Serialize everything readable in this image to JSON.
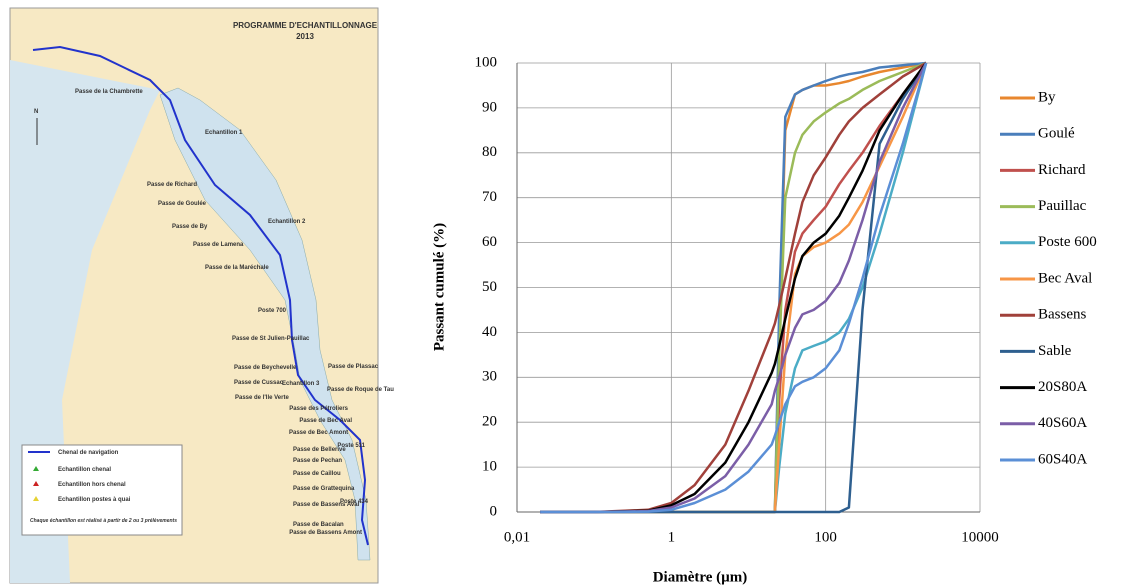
{
  "map": {
    "title": "PROGRAMME D'ECHANTILLONNAGE",
    "year": "2013",
    "north": "N",
    "labels": [
      "Passe de la Chambrette",
      "Echantillon 1",
      "Passe de Richard",
      "Passe de Goulée",
      "Passe de By",
      "Echantillon 2",
      "Passe de Lamena",
      "Passe de la Maréchale",
      "Poste 700",
      "Passe de St Julien-Pauillac",
      "Passe de Beychevelle",
      "Passe de Cussac",
      "Echantillon 3",
      "Passe de l'Ile Verte",
      "Passe de Plassac",
      "Passe de Roque de Tau",
      "Passe des Pétroliers",
      "Passe de Bec Aval",
      "Passe de Bec Amont",
      "Poste 511",
      "Passe de Bellerive",
      "Passe de Pechan",
      "Passe de Caillou",
      "Passe de Grattequina",
      "Passe de Bassens Aval",
      "Poste 434",
      "Passe de Bacalan",
      "Passe de Bassens Amont"
    ],
    "legend": [
      "Chenal de navigation",
      "Echantillon chenal",
      "Echantillon hors chenal",
      "Echantillon postes à quai"
    ],
    "note": "Chaque échantillon est réalisé à partir de 2 ou 3 prélèvements"
  },
  "chart_data": {
    "type": "line",
    "x_label": "Diamètre (µm)",
    "y_label": "Passant cumulé (%)",
    "log_scale": "x",
    "grid": true,
    "legend": "right",
    "xlim": [
      0.01,
      10000
    ],
    "xticks": [
      {
        "value": 0.01,
        "label": "0,01"
      },
      1,
      100,
      10000
    ],
    "ylim": [
      0,
      100
    ],
    "yticks": [
      0,
      10,
      20,
      30,
      40,
      50,
      60,
      70,
      80,
      90,
      100
    ],
    "x": [
      0.02,
      0.1,
      0.5,
      1,
      2,
      5,
      10,
      20,
      22,
      25,
      30,
      40,
      50,
      70,
      100,
      150,
      200,
      300,
      500,
      1000,
      2000
    ],
    "series": [
      {
        "name": "By",
        "color": "#e8872e",
        "values": [
          0,
          0,
          0,
          0,
          0,
          0,
          0,
          0,
          0,
          40,
          85,
          93,
          94,
          95,
          95,
          95.5,
          96,
          97,
          98,
          99,
          100
        ]
      },
      {
        "name": "Goulé",
        "color": "#4a7ebb",
        "values": [
          0,
          0,
          0,
          0,
          0,
          0,
          0,
          0,
          0,
          45,
          88,
          93,
          94,
          95,
          96,
          97,
          97.5,
          98,
          99,
          99.5,
          100
        ]
      },
      {
        "name": "Richard",
        "color": "#c0504d",
        "values": [
          0,
          0,
          0,
          0,
          0,
          0,
          0,
          0,
          0,
          25,
          45,
          58,
          62,
          65,
          68,
          73,
          76,
          80,
          86,
          93,
          100
        ]
      },
      {
        "name": "Pauillac",
        "color": "#9bbb59",
        "values": [
          0,
          0,
          0,
          0,
          0,
          0,
          0,
          0,
          0,
          35,
          70,
          80,
          84,
          87,
          89,
          91,
          92,
          94,
          96,
          98,
          100
        ]
      },
      {
        "name": "Poste 600",
        "color": "#4bacc6",
        "values": [
          0,
          0,
          0,
          0,
          0,
          0,
          0,
          0,
          0,
          10,
          22,
          32,
          36,
          37,
          38,
          40,
          43,
          50,
          62,
          80,
          100
        ]
      },
      {
        "name": "Bec Aval",
        "color": "#f79646",
        "values": [
          0,
          0,
          0,
          0,
          0,
          0,
          0,
          0,
          0,
          15,
          35,
          53,
          57,
          59,
          60,
          62,
          64,
          69,
          77,
          88,
          100
        ]
      },
      {
        "name": "Bassens",
        "color": "#a0403a",
        "values": [
          0,
          0,
          0.5,
          2,
          6,
          15,
          27,
          40,
          42,
          46,
          52,
          62,
          69,
          75,
          79,
          84,
          87,
          90,
          93,
          97,
          100
        ]
      },
      {
        "name": "Sable",
        "color": "#2e5f8f",
        "values": [
          0,
          0,
          0,
          0,
          0,
          0,
          0,
          0,
          0,
          0,
          0,
          0,
          0,
          0,
          0,
          0,
          1,
          45,
          82,
          92,
          100
        ]
      },
      {
        "name": "20S80A",
        "color": "#000000",
        "values": [
          0,
          0,
          0.3,
          1.5,
          4,
          11,
          20,
          31,
          33,
          37,
          43,
          52,
          57,
          60,
          62,
          66,
          70,
          76,
          85,
          93,
          100
        ]
      },
      {
        "name": "40S60A",
        "color": "#7b5ea7",
        "values": [
          0,
          0,
          0.2,
          1,
          3,
          8,
          15,
          24,
          27,
          30,
          35,
          41,
          44,
          45,
          47,
          51,
          56,
          65,
          78,
          90,
          100
        ]
      },
      {
        "name": "60S40A",
        "color": "#5b8fd6",
        "values": [
          0,
          0,
          0.1,
          0.5,
          2,
          5,
          9,
          15,
          17,
          20,
          24,
          28,
          29,
          30,
          32,
          36,
          42,
          52,
          66,
          82,
          100
        ]
      }
    ]
  }
}
